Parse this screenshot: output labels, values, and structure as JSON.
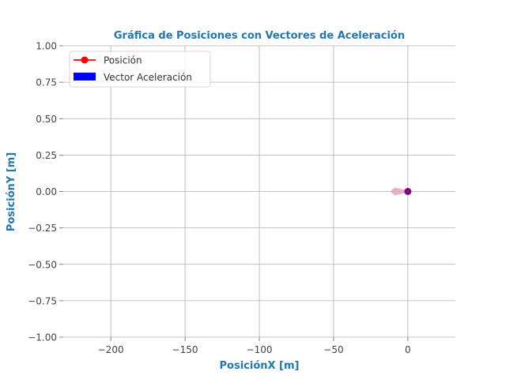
{
  "chart_data": {
    "type": "scatter",
    "title": "Gráfica de Posiciones con Vectores de Aceleración",
    "xlabel": "PosiciónX [m]",
    "ylabel": "PosiciónY [m]",
    "xlim": [
      -232,
      32
    ],
    "ylim": [
      -1.0,
      1.0
    ],
    "x_ticks": [
      -200,
      -150,
      -100,
      -50,
      0
    ],
    "x_tick_labels": [
      "−200",
      "−150",
      "−100",
      "−50",
      "0"
    ],
    "y_ticks": [
      1.0,
      0.75,
      0.5,
      0.25,
      0.0,
      -0.25,
      -0.5,
      -0.75,
      -1.0
    ],
    "y_tick_labels": [
      "1.00",
      "0.75",
      "0.50",
      "0.25",
      "0.00",
      "−0.25",
      "−0.50",
      "−0.75",
      "−1.00"
    ],
    "grid": true,
    "legend_position": "top-left",
    "legend": [
      {
        "label": "Posición",
        "marker": "line-dot",
        "color": "#ff0000"
      },
      {
        "label": "Vector Aceleración",
        "marker": "patch",
        "color": "#0000ff"
      }
    ],
    "points": [
      {
        "x": 0,
        "y": 0
      }
    ],
    "vectors": [
      {
        "x": 0,
        "y": 0,
        "dx": -12,
        "dy": 0
      }
    ],
    "colors": {
      "title": "#1f77b4",
      "axis_label": "#1f77b4",
      "position_marker": "#800080",
      "vector": "#e7a6c8",
      "grid": "#b0b0b0"
    }
  }
}
